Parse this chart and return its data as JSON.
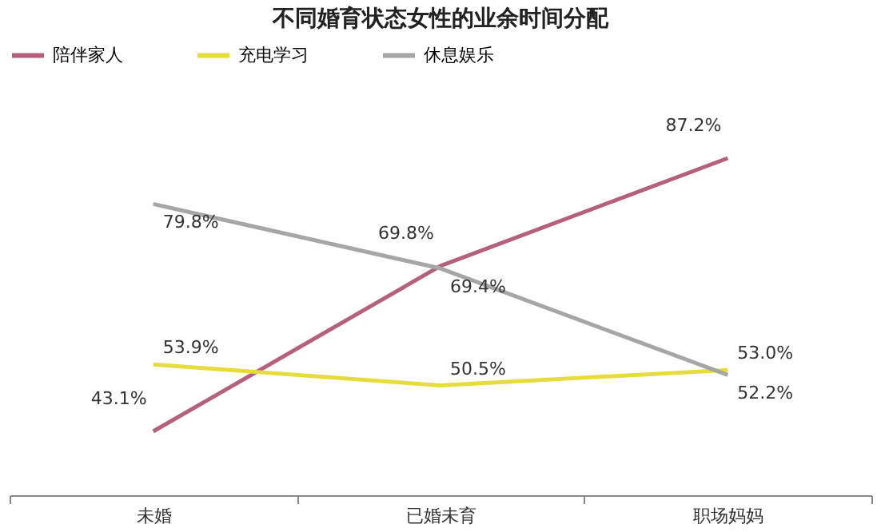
{
  "chart_data": {
    "type": "line",
    "title": "不同婚育状态女性的业余时间分配",
    "categories": [
      "未婚",
      "已婚未育",
      "职场妈妈"
    ],
    "series": [
      {
        "name": "陪伴家人",
        "color": "#b5607f",
        "values": [
          43.1,
          69.8,
          87.2
        ],
        "value_labels": [
          "43.1%",
          "69.8%",
          "87.2%"
        ]
      },
      {
        "name": "充电学习",
        "color": "#e6dc3c",
        "values": [
          53.9,
          50.5,
          53.0
        ],
        "value_labels": [
          "53.9%",
          "50.5%",
          "53.0%"
        ]
      },
      {
        "name": "休息娱乐",
        "color": "#a6a6a6",
        "values": [
          79.8,
          69.4,
          52.2
        ],
        "value_labels": [
          "79.8%",
          "69.4%",
          "52.2%"
        ]
      }
    ],
    "tick_labels": "x",
    "legend": "top",
    "grid": false,
    "marker": "none",
    "line_style": "solid"
  }
}
